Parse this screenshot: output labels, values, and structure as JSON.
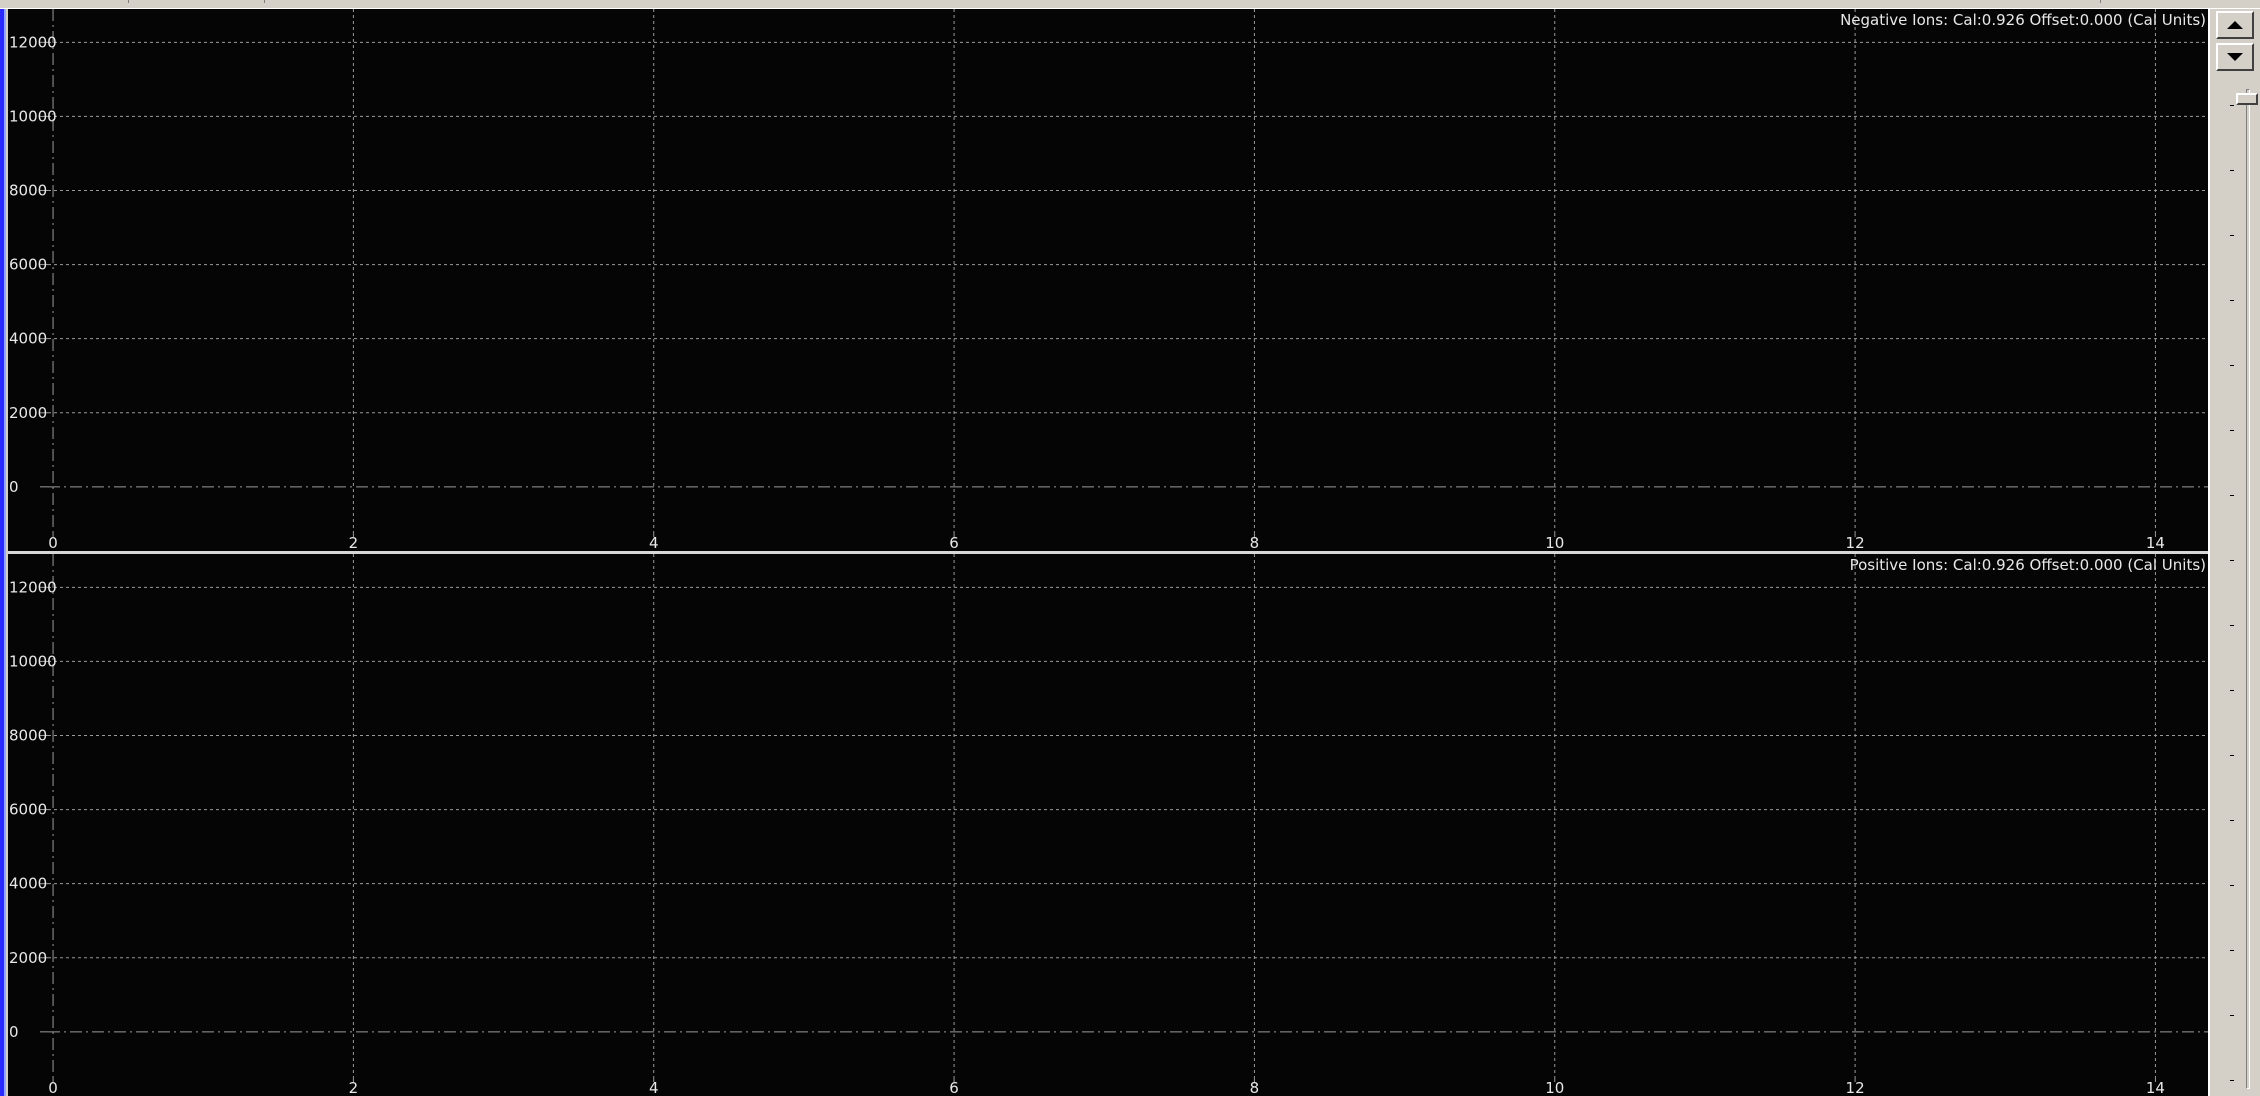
{
  "colors": {
    "plot_background": "#050505",
    "grid": "#9a9a9a",
    "text": "#e8e8e8",
    "window_face": "#d4d0c8",
    "left_bar": "#2a2aff"
  },
  "icons": {
    "scroll_up": "triangle-up-icon",
    "scroll_down": "triangle-down-icon"
  },
  "chart_data": [
    {
      "type": "line",
      "title": "Negative Ions: Cal:0.926 Offset:0.000 (Cal Units)",
      "xlabel": "",
      "ylabel": "",
      "xlim": [
        -0.3,
        14.35
      ],
      "ylim": [
        -1300,
        12900
      ],
      "x_ticks": [
        0,
        2,
        4,
        6,
        8,
        10,
        12,
        14
      ],
      "y_ticks": [
        0,
        2000,
        4000,
        6000,
        8000,
        10000,
        12000
      ],
      "grid": true,
      "series": []
    },
    {
      "type": "line",
      "title": "Positive Ions: Cal:0.926 Offset:0.000 (Cal Units)",
      "xlabel": "",
      "ylabel": "",
      "xlim": [
        -0.3,
        14.35
      ],
      "ylim": [
        -1300,
        12900
      ],
      "x_ticks": [
        0,
        2,
        4,
        6,
        8,
        10,
        12,
        14
      ],
      "y_ticks": [
        0,
        2000,
        4000,
        6000,
        8000,
        10000,
        12000
      ],
      "grid": true,
      "series": []
    }
  ]
}
